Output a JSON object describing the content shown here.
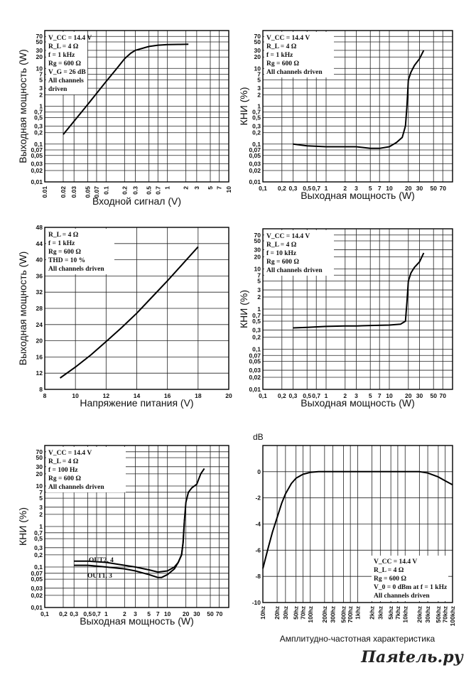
{
  "caption": "Амплитудно-частотная характеристика",
  "watermark": "Паяtель.ру",
  "chart_data": [
    {
      "type": "line",
      "ylabel": "Выходная мощность (W)",
      "xlabel": "Входной сигнал (V)",
      "x_scale": "log",
      "y_scale": "log",
      "xlim": [
        0.01,
        10
      ],
      "ylim": [
        0.01,
        100
      ],
      "x_ticks": [
        "0.01",
        "0.02",
        "0.03",
        "0.05",
        "0.07",
        "0.1",
        "0.2",
        "0.3",
        "0.5",
        "0.7",
        "1",
        "2",
        "3",
        "5",
        "7",
        "10"
      ],
      "y_ticks": [
        "0,01",
        "0,02",
        "0,03",
        "0,05",
        "0,07",
        "0,1",
        "0,2",
        "0,3",
        "0,5",
        "0,7",
        "1",
        "2",
        "3",
        "5",
        "7",
        "10",
        "20",
        "30",
        "50",
        "70"
      ],
      "annotations": [
        "V_CC = 14.4 V",
        "R_L = 4 Ω",
        "f = 1 kHz",
        "Rg = 600 Ω",
        "V_G = 26 dB",
        "All channels",
        "driven"
      ],
      "series": [
        {
          "x": [
            0.02,
            0.05,
            0.1,
            0.15,
            0.2,
            0.25,
            0.3,
            0.5,
            0.7,
            1,
            1.5,
            2.2
          ],
          "y": [
            0.18,
            1.1,
            4.5,
            10,
            18,
            25,
            30,
            38,
            41,
            42.5,
            43,
            43.5
          ]
        }
      ]
    },
    {
      "type": "line",
      "ylabel": "КНИ (%)",
      "xlabel": "Выходная мощность (W)",
      "x_scale": "log",
      "y_scale": "log",
      "xlim": [
        0.1,
        100
      ],
      "ylim": [
        0.01,
        100
      ],
      "x_ticks": [
        "0,1",
        "0,2",
        "0,3",
        "0,5",
        "0,7",
        "1",
        "2",
        "3",
        "5",
        "7",
        "10",
        "20",
        "30",
        "50",
        "70"
      ],
      "y_ticks": [
        "0,01",
        "0,02",
        "0,03",
        "0,05",
        "0,07",
        "0,1",
        "0,2",
        "0,3",
        "0,5",
        "0,7",
        "1",
        "2",
        "3",
        "5",
        "7",
        "10",
        "20",
        "30",
        "50",
        "70"
      ],
      "annotations": [
        "V_CC = 14.4 V",
        "R_L = 4 Ω",
        "f = 1 kHz",
        "Rg = 600 Ω",
        "All channels driven"
      ],
      "series": [
        {
          "x": [
            0.3,
            0.5,
            1,
            2,
            3,
            5,
            7,
            10,
            13,
            16,
            18,
            19,
            20,
            22,
            25,
            30,
            35
          ],
          "y": [
            0.1,
            0.09,
            0.085,
            0.085,
            0.085,
            0.077,
            0.077,
            0.085,
            0.11,
            0.15,
            0.3,
            1,
            5,
            8,
            12,
            18,
            30
          ]
        }
      ]
    },
    {
      "type": "line",
      "ylabel": "Выходная мощность (W)",
      "xlabel": "Напряжение питания (V)",
      "x_scale": "linear",
      "y_scale": "linear",
      "xlim": [
        8,
        20
      ],
      "ylim": [
        8,
        48
      ],
      "x_ticks": [
        "8",
        "10",
        "12",
        "14",
        "16",
        "18",
        "20"
      ],
      "y_ticks": [
        "8",
        "12",
        "16",
        "20",
        "24",
        "28",
        "32",
        "36",
        "40",
        "44",
        "48"
      ],
      "annotations": [
        "R_L = 4 Ω",
        "f = 1 kHz",
        "Rg = 600 Ω",
        "THD = 10 %",
        "All channels driven"
      ],
      "series": [
        {
          "x": [
            9,
            10,
            11,
            12,
            13,
            14,
            15,
            16,
            17,
            18
          ],
          "y": [
            10.8,
            13.5,
            16.5,
            19.8,
            23.2,
            26.8,
            30.8,
            34.8,
            39,
            43.2
          ]
        }
      ]
    },
    {
      "type": "line",
      "ylabel": "КНИ (%)",
      "xlabel": "Выходная мощность (W)",
      "x_scale": "log",
      "y_scale": "log",
      "xlim": [
        0.1,
        100
      ],
      "ylim": [
        0.01,
        100
      ],
      "x_ticks": [
        "0,1",
        "0,2",
        "0,3",
        "0,5",
        "0,7",
        "1",
        "2",
        "3",
        "5",
        "7",
        "10",
        "20",
        "30",
        "50",
        "70"
      ],
      "y_ticks": [
        "0,01",
        "0,02",
        "0,03",
        "0,05",
        "0,07",
        "0,1",
        "0,2",
        "0,3",
        "0,5",
        "0,7",
        "1",
        "2",
        "3",
        "5",
        "7",
        "10",
        "20",
        "30",
        "50",
        "70"
      ],
      "annotations": [
        "V_CC = 14.4 V",
        "R_L = 4 Ω",
        "f = 10 kHz",
        "Rg = 600 Ω",
        "All channels driven"
      ],
      "series": [
        {
          "x": [
            0.3,
            0.5,
            1,
            2,
            3,
            5,
            10,
            15,
            18,
            19,
            20,
            22,
            25,
            30,
            35
          ],
          "y": [
            0.34,
            0.35,
            0.37,
            0.38,
            0.38,
            0.39,
            0.4,
            0.42,
            0.5,
            1.5,
            5,
            8,
            11,
            15,
            25
          ]
        }
      ]
    },
    {
      "type": "line",
      "ylabel": "КНИ (%)",
      "xlabel": "Выходная мощность (W)",
      "x_scale": "log",
      "y_scale": "log",
      "xlim": [
        0.1,
        100
      ],
      "ylim": [
        0.01,
        100
      ],
      "x_ticks": [
        "0,1",
        "0,2",
        "0,3",
        "0,5",
        "0,7",
        "1",
        "2",
        "3",
        "5",
        "7",
        "10",
        "20",
        "30",
        "50",
        "70"
      ],
      "y_ticks": [
        "0,01",
        "0,02",
        "0,03",
        "0,05",
        "0,07",
        "0,1",
        "0,2",
        "0,3",
        "0,5",
        "0,7",
        "1",
        "2",
        "3",
        "5",
        "7",
        "10",
        "20",
        "30",
        "50",
        "70"
      ],
      "annotations": [
        "V_CC = 14.4 V",
        "R_L = 4 Ω",
        "f = 100 Hz",
        "Rg = 600 Ω",
        "All channels driven"
      ],
      "series": [
        {
          "name": "OUT2, 4",
          "x": [
            0.3,
            0.5,
            1,
            2,
            3,
            5,
            7,
            10,
            13,
            15,
            17,
            18,
            19,
            20,
            22,
            25,
            30,
            35,
            40
          ],
          "y": [
            0.14,
            0.14,
            0.13,
            0.11,
            0.1,
            0.085,
            0.075,
            0.08,
            0.1,
            0.13,
            0.2,
            0.4,
            1.5,
            4,
            7,
            9,
            11,
            20,
            27
          ]
        },
        {
          "name": "OUT1, 3",
          "x": [
            0.3,
            0.5,
            1,
            2,
            3,
            5,
            7,
            8,
            10,
            13,
            15,
            17,
            18,
            19
          ],
          "y": [
            0.11,
            0.11,
            0.1,
            0.09,
            0.08,
            0.065,
            0.055,
            0.055,
            0.065,
            0.09,
            0.13,
            0.2,
            0.4,
            1.5
          ]
        }
      ]
    },
    {
      "type": "line",
      "ylabel": "dB",
      "xlabel": "",
      "x_scale": "log",
      "y_scale": "linear",
      "xlim": [
        10,
        100000
      ],
      "ylim": [
        -10,
        2
      ],
      "x_ticks": [
        "10hz",
        "20hz",
        "30hz",
        "50hz",
        "70hz",
        "100hz",
        "200hz",
        "300hz",
        "500hz",
        "700hz",
        "1khz",
        "2khz",
        "3khz",
        "5khz",
        "7khz",
        "10khz",
        "20khz",
        "30khz",
        "50khz",
        "70khz",
        "100khz"
      ],
      "y_ticks": [
        "-10",
        "-8",
        "-6",
        "-4",
        "-2",
        "0"
      ],
      "annotations": [
        "V_CC = 14.4 V",
        "R_L = 4 Ω",
        "Rg = 600 Ω",
        "V_0 = 0 dBm at f = 1 kHz",
        "All channels driven"
      ],
      "series": [
        {
          "x": [
            10,
            13,
            16,
            20,
            25,
            30,
            40,
            50,
            70,
            100,
            150,
            200,
            500,
            1000,
            5000,
            10000,
            20000,
            30000,
            50000,
            70000,
            100000
          ],
          "y": [
            -7.4,
            -5.8,
            -4.6,
            -3.5,
            -2.4,
            -1.7,
            -0.9,
            -0.5,
            -0.2,
            -0.05,
            0,
            0,
            0,
            0,
            0,
            0,
            0,
            -0.1,
            -0.4,
            -0.7,
            -1.0
          ]
        }
      ]
    }
  ]
}
